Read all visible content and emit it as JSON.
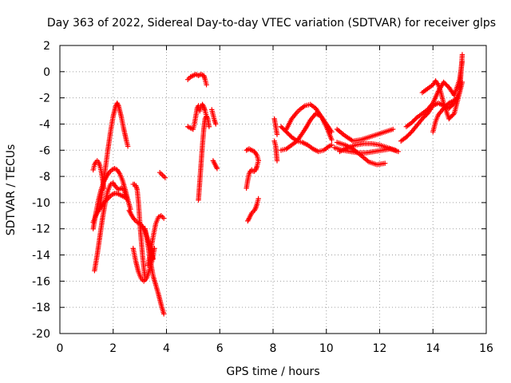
{
  "chart_data": {
    "type": "scatter",
    "title": "Day 363 of 2022, Sidereal Day-to-day VTEC variation (SDTVAR) for receiver glps",
    "xlabel": "GPS time / hours",
    "ylabel": "SDTVAR / TECUs",
    "xlim": [
      0,
      16
    ],
    "ylim": [
      -20,
      2
    ],
    "xticks": [
      "0",
      "2",
      "4",
      "6",
      "8",
      "10",
      "12",
      "14",
      "16"
    ],
    "yticks": [
      "2",
      "0",
      "-2",
      "-4",
      "-6",
      "-8",
      "-10",
      "-12",
      "-14",
      "-16",
      "-18",
      "-20"
    ],
    "grid": true,
    "marker": "+",
    "color": "#ff0000",
    "series": [
      {
        "x": [
          1.25,
          1.3,
          1.35,
          1.4,
          1.45,
          1.5,
          1.55,
          1.6,
          1.65
        ],
        "y": [
          -7.5,
          -7.1,
          -6.9,
          -6.8,
          -6.9,
          -7.2,
          -7.6,
          -8.2,
          -8.9
        ]
      },
      {
        "x": [
          1.25,
          1.35,
          1.45,
          1.55,
          1.65,
          1.75,
          1.85,
          1.95,
          2.05,
          2.15,
          2.25,
          2.35,
          2.45,
          2.55,
          2.65
        ],
        "y": [
          -12.0,
          -10.8,
          -9.8,
          -9.0,
          -8.4,
          -8.0,
          -7.7,
          -7.5,
          -7.4,
          -7.5,
          -7.8,
          -8.3,
          -9.0,
          -9.8,
          -10.5
        ]
      },
      {
        "x": [
          1.3,
          1.4,
          1.5,
          1.6,
          1.7,
          1.8,
          1.9,
          2.0,
          2.1,
          2.2,
          2.3,
          2.4,
          2.5
        ],
        "y": [
          -15.2,
          -14.0,
          -12.6,
          -11.2,
          -10.0,
          -9.1,
          -8.6,
          -8.5,
          -8.8,
          -9.0,
          -8.9,
          -9.0,
          -9.6
        ]
      },
      {
        "x": [
          1.25,
          1.35,
          1.45,
          1.55,
          1.65,
          1.75,
          1.85,
          1.95,
          2.05,
          2.15,
          2.25,
          2.35,
          2.45,
          2.55
        ],
        "y": [
          -11.5,
          -11.0,
          -10.6,
          -10.3,
          -10.0,
          -9.8,
          -9.6,
          -9.4,
          -9.3,
          -9.3,
          -9.4,
          -9.5,
          -9.6,
          -9.8
        ]
      },
      {
        "x": [
          1.5,
          1.6,
          1.7,
          1.8,
          1.9,
          2.0,
          2.1,
          2.15,
          2.2,
          2.3,
          2.4,
          2.5,
          2.55
        ],
        "y": [
          -10.5,
          -9.0,
          -7.5,
          -6.0,
          -4.6,
          -3.4,
          -2.6,
          -2.4,
          -2.6,
          -3.4,
          -4.4,
          -5.3,
          -5.7
        ]
      },
      {
        "x": [
          2.6,
          2.7,
          2.8,
          2.9,
          3.0,
          3.1,
          3.2,
          3.3,
          3.4,
          3.5
        ],
        "y": [
          -10.6,
          -11.0,
          -11.3,
          -11.5,
          -11.6,
          -11.8,
          -12.2,
          -12.8,
          -13.5,
          -14.3
        ]
      },
      {
        "x": [
          2.75,
          2.8,
          2.85,
          2.9,
          2.95,
          3.0,
          3.05,
          3.1,
          3.15,
          3.2
        ],
        "y": [
          -8.6,
          -8.6,
          -8.7,
          -9.0,
          -10.0,
          -11.5,
          -12.8,
          -14.0,
          -15.0,
          -15.8
        ]
      },
      {
        "x": [
          2.75,
          2.85,
          2.95,
          3.05,
          3.15,
          3.25,
          3.35,
          3.45,
          3.55
        ],
        "y": [
          -13.5,
          -14.5,
          -15.3,
          -15.8,
          -16.0,
          -15.8,
          -15.2,
          -14.5,
          -13.5
        ]
      },
      {
        "x": [
          3.2,
          3.3,
          3.4,
          3.5,
          3.6,
          3.7,
          3.8,
          3.9
        ],
        "y": [
          -12.0,
          -13.2,
          -14.5,
          -15.6,
          -16.3,
          -17.0,
          -17.8,
          -18.5
        ]
      },
      {
        "x": [
          3.3,
          3.4,
          3.5,
          3.6,
          3.7,
          3.8,
          3.9
        ],
        "y": [
          -14.8,
          -13.8,
          -12.6,
          -11.6,
          -11.1,
          -11.0,
          -11.2
        ]
      },
      {
        "x": [
          3.75,
          3.8,
          3.85,
          3.9,
          3.95
        ],
        "y": [
          -7.7,
          -7.8,
          -7.9,
          -8.0,
          -8.1
        ]
      },
      {
        "x": [
          4.8,
          4.9,
          5.0,
          5.1,
          5.2,
          5.3,
          5.4,
          5.45,
          5.5
        ],
        "y": [
          -0.6,
          -0.4,
          -0.3,
          -0.2,
          -0.3,
          -0.2,
          -0.3,
          -0.6,
          -1.0
        ]
      },
      {
        "x": [
          4.8,
          4.9,
          5.0,
          5.05,
          5.1,
          5.15,
          5.2
        ],
        "y": [
          -4.2,
          -4.3,
          -4.4,
          -4.0,
          -3.4,
          -2.8,
          -2.6
        ]
      },
      {
        "x": [
          5.2,
          5.25,
          5.3,
          5.35,
          5.4,
          5.45,
          5.5,
          5.55,
          5.6
        ],
        "y": [
          -9.8,
          -8.4,
          -7.0,
          -5.6,
          -4.4,
          -3.6,
          -3.4,
          -3.6,
          -4.2
        ]
      },
      {
        "x": [
          5.25,
          5.3,
          5.35,
          5.4,
          5.45,
          5.5
        ],
        "y": [
          -3.0,
          -2.6,
          -2.5,
          -2.7,
          -3.0,
          -3.4
        ]
      },
      {
        "x": [
          5.7,
          5.75,
          5.8,
          5.85
        ],
        "y": [
          -2.9,
          -3.3,
          -3.7,
          -4.0
        ]
      },
      {
        "x": [
          5.75,
          5.8,
          5.85,
          5.9
        ],
        "y": [
          -6.8,
          -7.0,
          -7.2,
          -7.4
        ]
      },
      {
        "x": [
          7.0,
          7.1,
          7.2,
          7.3,
          7.4,
          7.45
        ],
        "y": [
          -6.0,
          -5.9,
          -6.0,
          -6.1,
          -6.4,
          -6.8
        ]
      },
      {
        "x": [
          7.05,
          7.1,
          7.15,
          7.2,
          7.25,
          7.3,
          7.35,
          7.4,
          7.45
        ],
        "y": [
          -11.4,
          -11.2,
          -11.0,
          -10.8,
          -10.7,
          -10.6,
          -10.4,
          -10.1,
          -9.7
        ]
      },
      {
        "x": [
          7.0,
          7.05,
          7.1,
          7.15,
          7.2,
          7.25,
          7.3,
          7.35,
          7.4,
          7.45
        ],
        "y": [
          -8.9,
          -8.3,
          -7.8,
          -7.6,
          -7.5,
          -7.6,
          -7.6,
          -7.5,
          -7.2,
          -6.8
        ]
      },
      {
        "x": [
          8.05,
          8.1,
          8.15
        ],
        "y": [
          -3.6,
          -4.2,
          -4.8
        ]
      },
      {
        "x": [
          8.05,
          8.1,
          8.15
        ],
        "y": [
          -5.3,
          -5.7,
          -6.8
        ]
      },
      {
        "x": [
          8.3,
          8.5,
          8.7,
          8.9,
          9.1,
          9.3,
          9.5,
          9.7,
          9.9,
          10.1,
          10.2
        ],
        "y": [
          -4.2,
          -4.6,
          -5.0,
          -5.3,
          -5.4,
          -5.6,
          -5.9,
          -6.1,
          -6.0,
          -5.7,
          -5.6
        ]
      },
      {
        "x": [
          8.3,
          8.5,
          8.7,
          8.9,
          9.0,
          9.2,
          9.4,
          9.6,
          9.8,
          10.0,
          10.2
        ],
        "y": [
          -6.0,
          -5.9,
          -5.6,
          -5.3,
          -5.0,
          -4.4,
          -3.7,
          -3.2,
          -3.4,
          -4.2,
          -5.2
        ]
      },
      {
        "x": [
          8.5,
          8.7,
          8.9,
          9.0,
          9.2,
          9.4,
          9.6,
          9.8,
          10.0,
          10.2
        ],
        "y": [
          -4.4,
          -3.6,
          -3.1,
          -2.9,
          -2.6,
          -2.5,
          -2.8,
          -3.4,
          -4.0,
          -4.6
        ]
      },
      {
        "x": [
          10.3,
          10.6,
          10.9,
          11.2,
          11.5,
          11.8,
          12.1,
          12.4,
          12.7
        ],
        "y": [
          -5.8,
          -6.0,
          -6.1,
          -6.2,
          -6.2,
          -6.1,
          -6.0,
          -5.9,
          -6.1
        ]
      },
      {
        "x": [
          10.4,
          10.7,
          11.0,
          11.3,
          11.6,
          11.9,
          12.2,
          12.5
        ],
        "y": [
          -4.4,
          -4.9,
          -5.3,
          -5.2,
          -5.0,
          -4.8,
          -4.6,
          -4.4
        ]
      },
      {
        "x": [
          10.4,
          10.7,
          11.0,
          11.3,
          11.6,
          11.9,
          12.2
        ],
        "y": [
          -5.4,
          -5.6,
          -5.9,
          -6.4,
          -6.9,
          -7.1,
          -7.0
        ]
      },
      {
        "x": [
          10.5,
          10.8,
          11.1,
          11.4,
          11.7,
          12.0,
          12.3,
          12.6
        ],
        "y": [
          -6.1,
          -5.8,
          -5.6,
          -5.5,
          -5.5,
          -5.6,
          -5.8,
          -6.0
        ]
      },
      {
        "x": [
          12.8,
          13.0,
          13.2,
          13.4,
          13.6,
          13.8,
          14.0,
          14.2,
          14.4,
          14.6,
          14.8,
          15.0,
          15.1
        ],
        "y": [
          -5.3,
          -5.0,
          -4.6,
          -4.1,
          -3.6,
          -3.2,
          -2.6,
          -2.4,
          -2.6,
          -2.8,
          -2.4,
          -1.6,
          -0.8
        ]
      },
      {
        "x": [
          13.0,
          13.2,
          13.4,
          13.6,
          13.8,
          14.0,
          14.2,
          14.4,
          14.6,
          14.8,
          15.0,
          15.1
        ],
        "y": [
          -4.2,
          -3.9,
          -3.5,
          -3.2,
          -2.9,
          -2.4,
          -1.5,
          -0.8,
          -1.2,
          -1.8,
          -0.6,
          0.8
        ]
      },
      {
        "x": [
          13.6,
          13.8,
          14.0,
          14.1,
          14.2,
          14.3,
          14.4,
          14.6,
          14.8,
          15.0,
          15.1
        ],
        "y": [
          -1.6,
          -1.3,
          -1.0,
          -0.7,
          -1.0,
          -1.6,
          -2.4,
          -3.6,
          -3.2,
          -1.6,
          1.3
        ]
      },
      {
        "x": [
          14.0,
          14.1,
          14.2,
          14.4,
          14.6,
          14.8,
          14.9
        ],
        "y": [
          -4.6,
          -3.8,
          -3.3,
          -2.8,
          -2.4,
          -2.2,
          -2.0
        ]
      }
    ]
  }
}
